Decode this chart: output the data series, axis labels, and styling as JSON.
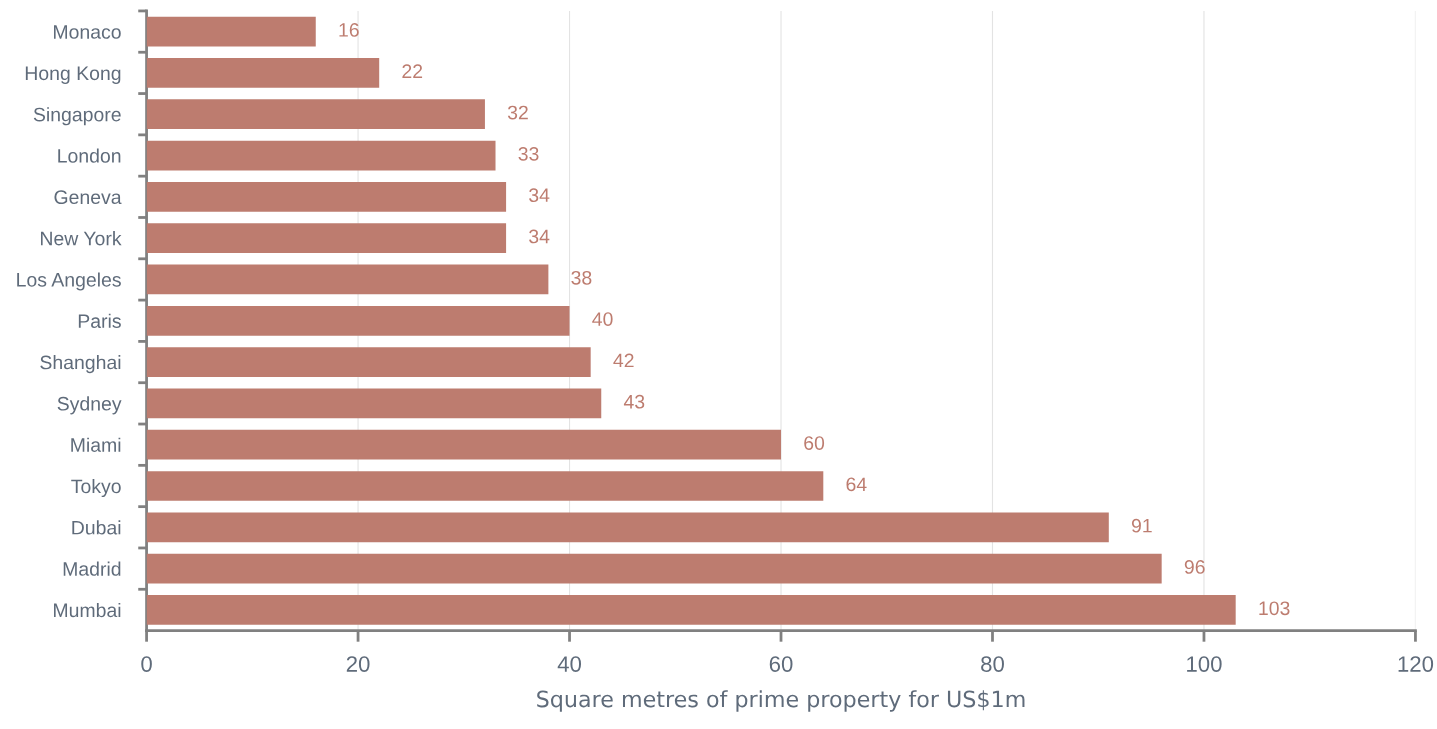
{
  "chart_data": {
    "type": "bar",
    "orientation": "horizontal",
    "xlabel": "Square metres of prime property for US$1m",
    "categories": [
      "Monaco",
      "Hong Kong",
      "Singapore",
      "London",
      "Geneva",
      "New York",
      "Los Angeles",
      "Paris",
      "Shanghai",
      "Sydney",
      "Miami",
      "Tokyo",
      "Dubai",
      "Madrid",
      "Mumbai"
    ],
    "values": [
      16,
      22,
      32,
      33,
      34,
      34,
      38,
      40,
      42,
      43,
      60,
      64,
      91,
      96,
      103
    ],
    "color": "#bd7c6f",
    "xlim": [
      0,
      120
    ],
    "xticks": [
      0,
      20,
      40,
      60,
      80,
      100,
      120
    ],
    "grid": "x",
    "data_labels": true,
    "legend": false
  }
}
